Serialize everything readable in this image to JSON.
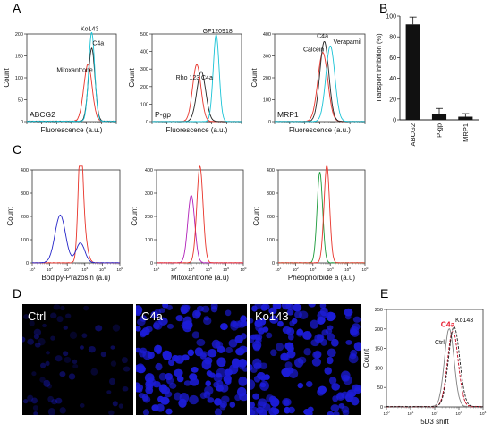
{
  "panel_letters": {
    "a": "A",
    "b": "B",
    "c": "C",
    "d": "D",
    "e": "E"
  },
  "colors": {
    "black": "#222222",
    "red": "#e8332a",
    "cyan": "#19c3d6",
    "blue": "#2424c8",
    "magenta": "#b020b8",
    "green": "#1a9a3a",
    "dark_red": "#c0001a",
    "grey": "#808080",
    "nuclei": "#1c1cd8"
  },
  "chart_data": [
    {
      "id": "A1",
      "type": "line",
      "panel": "A",
      "xlabel": "Fluorescence (a.u.)",
      "ylabel": "Count",
      "inner_label": "ABCG2",
      "xscale": "log",
      "xlim": [
        0.1,
        100000
      ],
      "ylim": [
        0,
        200
      ],
      "yticks": [
        0,
        50,
        100,
        150,
        200
      ],
      "curves": [
        {
          "color": "red",
          "peak_log": 3.1,
          "height": 130,
          "width": 0.28
        },
        {
          "color": "black",
          "peak_log": 3.35,
          "height": 167,
          "width": 0.22
        },
        {
          "color": "cyan",
          "peak_log": 3.35,
          "height": 203,
          "width": 0.2
        }
      ],
      "annotations": [
        {
          "text": "Ko143",
          "x_log": 2.6,
          "y": 207
        },
        {
          "text": "C4a",
          "x_log": 3.4,
          "y": 175
        },
        {
          "text": "Mitoxantrone",
          "x_log": 1.0,
          "y": 113
        }
      ]
    },
    {
      "id": "A2",
      "type": "line",
      "panel": "A",
      "xlabel": "Fluorescence (a.u.)",
      "ylabel": "Count",
      "inner_label": "P-gp",
      "xscale": "log",
      "xlim": [
        0.1,
        100000
      ],
      "ylim": [
        0,
        500
      ],
      "yticks": [
        0,
        100,
        200,
        300,
        400,
        500
      ],
      "curves": [
        {
          "color": "red",
          "peak_log": 2.0,
          "height": 325,
          "width": 0.28
        },
        {
          "color": "black",
          "peak_log": 2.3,
          "height": 285,
          "width": 0.3
        },
        {
          "color": "cyan",
          "peak_log": 3.3,
          "height": 495,
          "width": 0.2
        }
      ],
      "annotations": [
        {
          "text": "GF120918",
          "x_log": 2.4,
          "y": 505
        },
        {
          "text": "Rho 123",
          "x_log": 0.6,
          "y": 240
        },
        {
          "text": "C4a",
          "x_log": 2.3,
          "y": 240
        }
      ]
    },
    {
      "id": "A3",
      "type": "line",
      "panel": "A",
      "xlabel": "Fluorescence (a.u.)",
      "ylabel": "Count",
      "inner_label": "MRP1",
      "xscale": "log",
      "xlim": [
        0.1,
        100000
      ],
      "ylim": [
        0,
        400
      ],
      "yticks": [
        0,
        100,
        200,
        300,
        400
      ],
      "curves": [
        {
          "color": "red",
          "peak_log": 2.2,
          "height": 315,
          "width": 0.33
        },
        {
          "color": "black",
          "peak_log": 2.3,
          "height": 365,
          "width": 0.3
        },
        {
          "color": "cyan",
          "peak_log": 2.7,
          "height": 345,
          "width": 0.3
        }
      ],
      "annotations": [
        {
          "text": "C4a",
          "x_log": 1.8,
          "y": 382
        },
        {
          "text": "Verapamil",
          "x_log": 2.9,
          "y": 355
        },
        {
          "text": "Calcein",
          "x_log": 0.9,
          "y": 320
        }
      ]
    },
    {
      "id": "B",
      "type": "bar",
      "panel": "B",
      "categories": [
        "ABCG2",
        "P-gp",
        "MRP1"
      ],
      "values": [
        92,
        6,
        3
      ],
      "errors": [
        7,
        5,
        3
      ],
      "ylabel": "Transport inhibition (%)",
      "ylim": [
        0,
        100
      ],
      "yticks": [
        0,
        20,
        40,
        60,
        80,
        100
      ]
    },
    {
      "id": "C1",
      "type": "line",
      "panel": "C",
      "xlabel": "Bodipy-Prazosin (a.u)",
      "ylabel": "Count",
      "xscale": "log",
      "xlim": [
        10,
        1000000
      ],
      "ylim": [
        0,
        400
      ],
      "yticks": [
        0,
        100,
        200,
        300,
        400
      ],
      "xticks": [
        "10^1",
        "10^2",
        "10^3",
        "10^4",
        "10^5",
        "10^6"
      ],
      "curves": [
        {
          "color": "red",
          "components": [
            {
              "peak_log": 3.75,
              "height": 420,
              "width": 0.13
            },
            {
              "peak_log": 3.9,
              "height": 150,
              "width": 0.2
            }
          ]
        },
        {
          "color": "blue",
          "components": [
            {
              "peak_log": 2.6,
              "height": 205,
              "width": 0.3
            },
            {
              "peak_log": 3.75,
              "height": 85,
              "width": 0.25
            }
          ]
        }
      ]
    },
    {
      "id": "C2",
      "type": "line",
      "panel": "C",
      "xlabel": "Mitoxantrone (a.u)",
      "ylabel": "Count",
      "xscale": "log",
      "xlim": [
        10,
        1000000
      ],
      "ylim": [
        0,
        400
      ],
      "yticks": [
        0,
        100,
        200,
        300,
        400
      ],
      "xticks": [
        "10^1",
        "10^2",
        "10^3",
        "10^4",
        "10^5",
        "10^6"
      ],
      "curves": [
        {
          "color": "magenta",
          "components": [
            {
              "peak_log": 3.0,
              "height": 290,
              "width": 0.2
            }
          ]
        },
        {
          "color": "red",
          "components": [
            {
              "peak_log": 3.5,
              "height": 415,
              "width": 0.18
            }
          ]
        }
      ]
    },
    {
      "id": "C3",
      "type": "line",
      "panel": "C",
      "xlabel": "Pheophorbide a (a.u)",
      "ylabel": "Count",
      "xscale": "log",
      "xlim": [
        10,
        1000000
      ],
      "ylim": [
        0,
        400
      ],
      "yticks": [
        0,
        100,
        200,
        300,
        400
      ],
      "xticks": [
        "10^1",
        "10^2",
        "10^3",
        "10^4",
        "10^5",
        "10^6"
      ],
      "curves": [
        {
          "color": "green",
          "components": [
            {
              "peak_log": 3.4,
              "height": 390,
              "width": 0.16
            }
          ]
        },
        {
          "color": "red",
          "components": [
            {
              "peak_log": 3.8,
              "height": 420,
              "width": 0.16
            }
          ]
        }
      ]
    },
    {
      "id": "E",
      "type": "line",
      "panel": "E",
      "xlabel": "5D3 shift",
      "ylabel": "Count",
      "xscale": "log",
      "xlim": [
        1,
        10000
      ],
      "ylim": [
        0,
        250
      ],
      "yticks": [
        0,
        50,
        100,
        150,
        200,
        250
      ],
      "xticks": [
        "10^0",
        "10^1",
        "10^2",
        "10^3",
        "10^4"
      ],
      "curves": [
        {
          "color": "grey",
          "style": "solid",
          "peak_log": 2.6,
          "height": 200,
          "width": 0.2
        },
        {
          "color": "dark_red",
          "style": "dashed",
          "peak_log": 2.75,
          "height": 195,
          "width": 0.22
        },
        {
          "color": "black",
          "style": "dashed",
          "peak_log": 2.8,
          "height": 205,
          "width": 0.23
        }
      ],
      "annotations": [
        {
          "text": "Ko143",
          "x_log": 2.85,
          "y": 218,
          "color": "black"
        },
        {
          "text": "C4a",
          "x_log": 2.25,
          "y": 205,
          "color": "red",
          "bold": true
        },
        {
          "text": "Ctrl",
          "x_log": 2.0,
          "y": 160,
          "color": "black"
        }
      ]
    }
  ],
  "images": [
    {
      "label": "Ctrl",
      "cell_density": "sparse"
    },
    {
      "label": "C4a",
      "cell_density": "dense"
    },
    {
      "label": "Ko143",
      "cell_density": "dense"
    }
  ]
}
